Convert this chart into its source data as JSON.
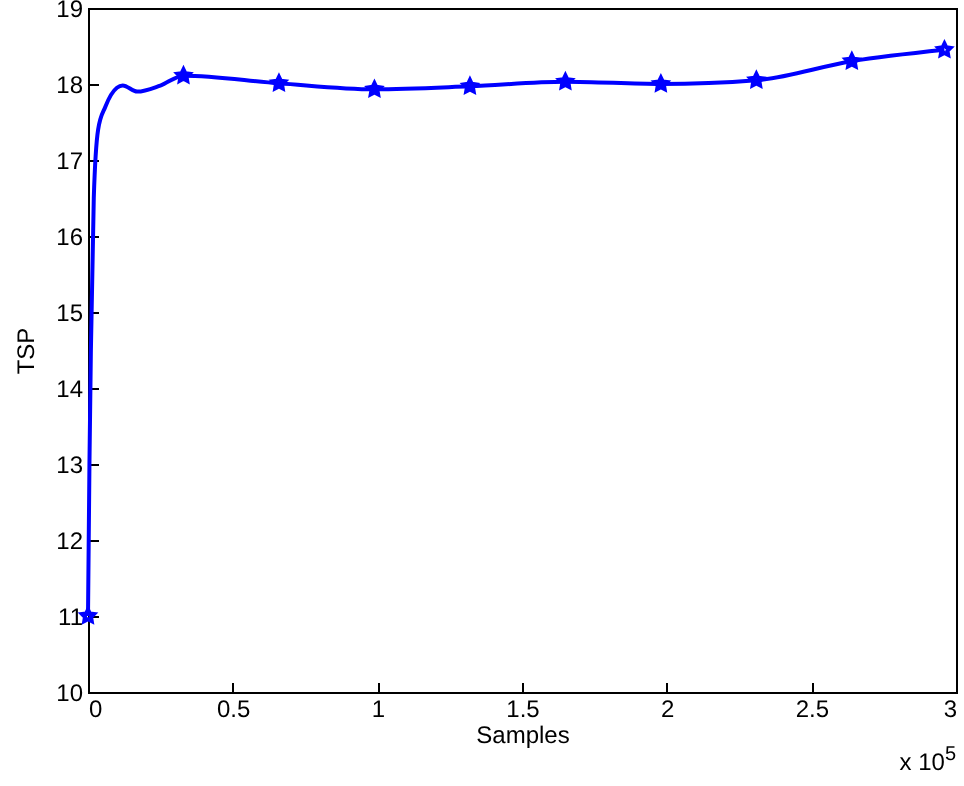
{
  "chart_data": {
    "type": "line",
    "xlabel": "Samples",
    "ylabel": "TSP",
    "xlim": [
      0,
      3
    ],
    "xticks": [
      0,
      0.5,
      1,
      1.5,
      2,
      2.5,
      3
    ],
    "ylim": [
      10,
      19
    ],
    "yticks": [
      10,
      11,
      12,
      13,
      14,
      15,
      16,
      17,
      18,
      19
    ],
    "grid": false,
    "line_style": "solid",
    "annotations": [
      "x 10$^{5}$"
    ],
    "series": [
      {
        "marker": "none",
        "color": "#0000ff",
        "x": [
          0,
          0.005,
          0.01,
          0.02,
          0.035,
          0.06,
          0.1,
          0.12,
          0.17,
          0.25,
          0.33,
          0.66,
          0.99,
          1.32,
          1.65,
          1.98,
          2.31,
          2.64,
          2.96
        ],
        "values": [
          11,
          13,
          14.5,
          16.5,
          17.4,
          17.7,
          17.95,
          17.98,
          17.9,
          17.98,
          18.11,
          18.01,
          17.93,
          17.97,
          18.03,
          18,
          18.05,
          18.3,
          18.45
        ]
      },
      {
        "type": "scatter",
        "marker": "star",
        "color": "#0000ff",
        "x": [
          0,
          0.33,
          0.66,
          0.99,
          1.32,
          1.65,
          1.98,
          2.31,
          2.64,
          2.96
        ],
        "values": [
          11,
          18.11,
          18.01,
          17.93,
          17.97,
          18.03,
          18,
          18.05,
          18.3,
          18.45
        ]
      }
    ]
  }
}
